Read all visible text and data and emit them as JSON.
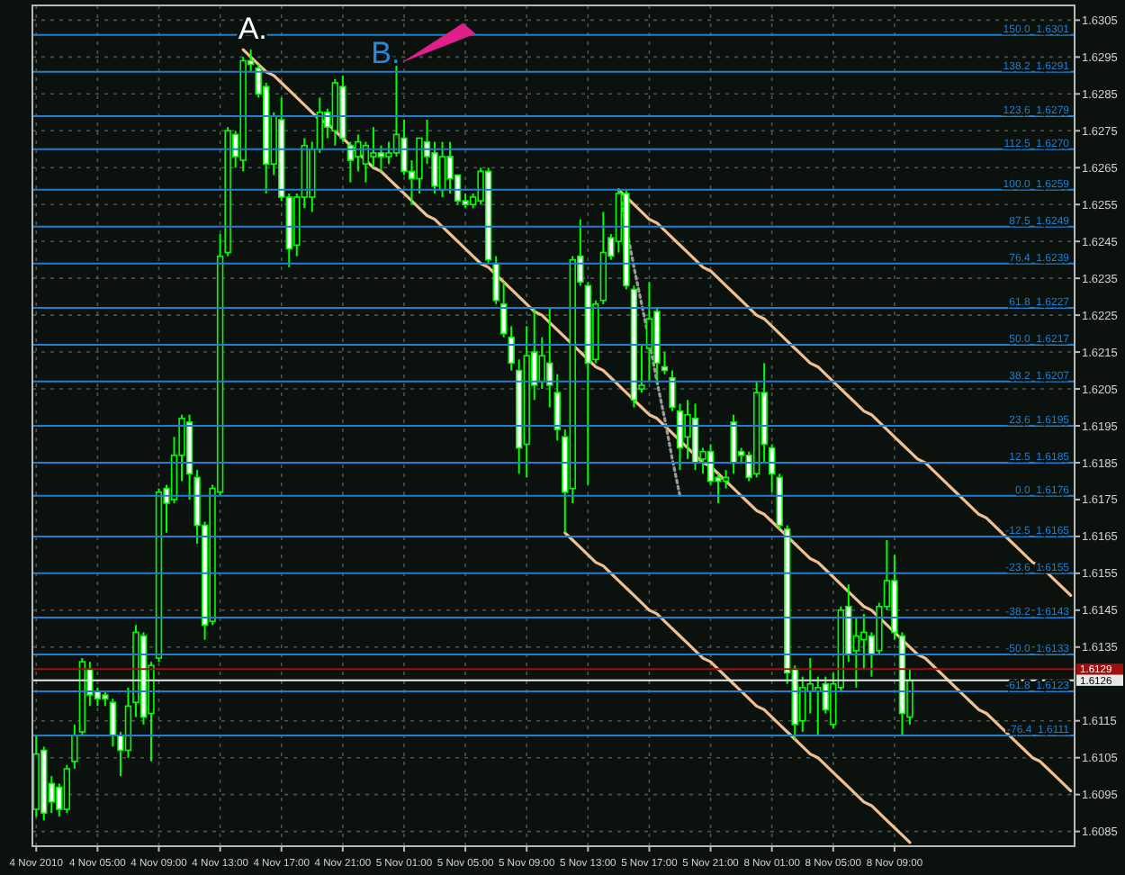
{
  "chart_data": {
    "type": "candlestick",
    "color": "#00ff00",
    "categories": [
      "4 Nov 2010",
      null,
      null,
      null,
      null,
      null,
      null,
      null,
      "4 Nov 05:00",
      null,
      null,
      null,
      null,
      null,
      null,
      null,
      "4 Nov 09:00",
      null,
      null,
      null,
      null,
      null,
      null,
      null,
      "4 Nov 13:00",
      null,
      null,
      null,
      null,
      null,
      null,
      null,
      "4 Nov 17:00",
      null,
      null,
      null,
      null,
      null,
      null,
      null,
      "4 Nov 21:00",
      null,
      null,
      null,
      null,
      null,
      null,
      null,
      "5 Nov 01:00",
      null,
      null,
      null,
      null,
      null,
      null,
      null,
      "5 Nov 05:00",
      null,
      null,
      null,
      null,
      null,
      null,
      null,
      "5 Nov 09:00",
      null,
      null,
      null,
      null,
      null,
      null,
      null,
      "5 Nov 13:00",
      null,
      null,
      null,
      null,
      null,
      null,
      null,
      "5 Nov 17:00",
      null,
      null,
      null,
      null,
      null,
      null,
      null,
      "5 Nov 21:00",
      null,
      null,
      null,
      null,
      null,
      null,
      null,
      "8 Nov 01:00",
      null,
      null,
      null,
      null,
      null,
      null,
      null,
      "8 Nov 05:00",
      null,
      null,
      null,
      null,
      null,
      null,
      null,
      "8 Nov 09:00",
      null,
      null,
      null,
      null,
      null,
      null,
      null,
      null,
      null,
      null,
      null,
      null,
      null,
      null,
      null,
      null,
      null,
      null,
      null,
      null,
      null,
      null,
      null
    ],
    "ohlc": [
      [
        1.6091,
        1.6111,
        1.6089,
        1.6106
      ],
      [
        1.6107,
        1.6108,
        1.6088,
        1.609
      ],
      [
        1.6098,
        1.61,
        1.609,
        1.6093
      ],
      [
        1.6097,
        1.6098,
        1.6089,
        1.6091
      ],
      [
        1.6091,
        1.6103,
        1.609,
        1.6102
      ],
      [
        1.6104,
        1.6114,
        1.6102,
        1.6111
      ],
      [
        1.6112,
        1.6132,
        1.6111,
        1.6131
      ],
      [
        1.6129,
        1.6131,
        1.6119,
        1.6122
      ],
      [
        1.6123,
        1.6124,
        1.6119,
        1.6121
      ],
      [
        1.6122,
        1.6123,
        1.6119,
        1.6121
      ],
      [
        1.612,
        1.6121,
        1.6108,
        1.6111
      ],
      [
        1.6111,
        1.6112,
        1.61,
        1.6107
      ],
      [
        1.6107,
        1.6124,
        1.6105,
        1.6119
      ],
      [
        1.612,
        1.6141,
        1.6116,
        1.6139
      ],
      [
        1.6138,
        1.6139,
        1.6114,
        1.6116
      ],
      [
        1.6117,
        1.6131,
        1.6104,
        1.613
      ],
      [
        1.6132,
        1.6178,
        1.6131,
        1.6177
      ],
      [
        1.6178,
        1.6179,
        1.6166,
        1.6174
      ],
      [
        1.6175,
        1.6192,
        1.6174,
        1.6187
      ],
      [
        1.6187,
        1.6198,
        1.618,
        1.6197
      ],
      [
        1.6196,
        1.6198,
        1.6175,
        1.6182
      ],
      [
        1.6181,
        1.6183,
        1.6163,
        1.6168
      ],
      [
        1.6168,
        1.6169,
        1.6137,
        1.6141
      ],
      [
        1.6142,
        1.6179,
        1.6141,
        1.6178
      ],
      [
        1.6177,
        1.6247,
        1.6176,
        1.6241
      ],
      [
        1.6242,
        1.6276,
        1.6241,
        1.6275
      ],
      [
        1.6274,
        1.6275,
        1.6265,
        1.6268
      ],
      [
        1.6267,
        1.6295,
        1.6264,
        1.6294
      ],
      [
        1.6294,
        1.6297,
        1.6291,
        1.6293
      ],
      [
        1.6292,
        1.6293,
        1.6284,
        1.6285
      ],
      [
        1.6287,
        1.6288,
        1.6258,
        1.6266
      ],
      [
        1.6266,
        1.628,
        1.6263,
        1.6279
      ],
      [
        1.6278,
        1.6284,
        1.6256,
        1.6257
      ],
      [
        1.6257,
        1.6258,
        1.6238,
        1.6243
      ],
      [
        1.6244,
        1.6258,
        1.6241,
        1.6257
      ],
      [
        1.6257,
        1.6273,
        1.6254,
        1.6271
      ],
      [
        1.6257,
        1.6272,
        1.6253,
        1.627
      ],
      [
        1.627,
        1.6284,
        1.6269,
        1.628
      ],
      [
        1.628,
        1.6281,
        1.6273,
        1.6276
      ],
      [
        1.6275,
        1.6289,
        1.6271,
        1.6288
      ],
      [
        1.6287,
        1.629,
        1.6272,
        1.6273
      ],
      [
        1.6271,
        1.6272,
        1.6261,
        1.6267
      ],
      [
        1.6268,
        1.6274,
        1.6264,
        1.6272
      ],
      [
        1.6266,
        1.6272,
        1.6261,
        1.6271
      ],
      [
        1.6268,
        1.6276,
        1.6265,
        1.6269
      ],
      [
        1.6269,
        1.6271,
        1.6264,
        1.6268
      ],
      [
        1.6268,
        1.6272,
        1.6266,
        1.6269
      ],
      [
        1.6269,
        1.6293,
        1.6268,
        1.6274
      ],
      [
        1.6273,
        1.6278,
        1.6263,
        1.6264
      ],
      [
        1.6264,
        1.6267,
        1.6255,
        1.6262
      ],
      [
        1.6262,
        1.6273,
        1.6258,
        1.6273
      ],
      [
        1.6272,
        1.6278,
        1.6266,
        1.6268
      ],
      [
        1.6269,
        1.6272,
        1.6258,
        1.626
      ],
      [
        1.6259,
        1.6272,
        1.6257,
        1.6268
      ],
      [
        1.6268,
        1.6272,
        1.6258,
        1.6262
      ],
      [
        1.6263,
        1.6263,
        1.6255,
        1.6256
      ],
      [
        1.6256,
        1.6258,
        1.6254,
        1.6255
      ],
      [
        1.6255,
        1.6258,
        1.6254,
        1.6257
      ],
      [
        1.6256,
        1.6265,
        1.6255,
        1.6264
      ],
      [
        1.6264,
        1.6265,
        1.6239,
        1.624
      ],
      [
        1.6239,
        1.6241,
        1.6228,
        1.6229
      ],
      [
        1.6228,
        1.6234,
        1.6219,
        1.622
      ],
      [
        1.6219,
        1.6222,
        1.621,
        1.6212
      ],
      [
        1.621,
        1.6213,
        1.6182,
        1.6189
      ],
      [
        1.619,
        1.6222,
        1.6181,
        1.6214
      ],
      [
        1.6215,
        1.6227,
        1.6202,
        1.6206
      ],
      [
        1.6207,
        1.6219,
        1.6205,
        1.6214
      ],
      [
        1.6212,
        1.6227,
        1.62,
        1.6206
      ],
      [
        1.6204,
        1.6209,
        1.6191,
        1.6194
      ],
      [
        1.6192,
        1.6194,
        1.6166,
        1.6177
      ],
      [
        1.6178,
        1.6241,
        1.6174,
        1.624
      ],
      [
        1.6241,
        1.6251,
        1.6233,
        1.6234
      ],
      [
        1.6233,
        1.6234,
        1.6179,
        1.6212
      ],
      [
        1.6213,
        1.6229,
        1.6212,
        1.6228
      ],
      [
        1.6229,
        1.6253,
        1.6228,
        1.6242
      ],
      [
        1.6246,
        1.6247,
        1.624,
        1.6241
      ],
      [
        1.6245,
        1.6259,
        1.6242,
        1.6258
      ],
      [
        1.6258,
        1.6259,
        1.6232,
        1.6233
      ],
      [
        1.6232,
        1.6233,
        1.62,
        1.6202
      ],
      [
        1.6205,
        1.6217,
        1.6204,
        1.6206
      ],
      [
        1.6216,
        1.6234,
        1.6207,
        1.6224
      ],
      [
        1.6226,
        1.6227,
        1.6207,
        1.6212
      ],
      [
        1.6211,
        1.6215,
        1.6209,
        1.621
      ],
      [
        1.6208,
        1.621,
        1.6199,
        1.62
      ],
      [
        1.6199,
        1.6201,
        1.6183,
        1.6189
      ],
      [
        1.6192,
        1.6202,
        1.6186,
        1.6198
      ],
      [
        1.6197,
        1.6201,
        1.6183,
        1.6185
      ],
      [
        1.6186,
        1.6189,
        1.6182,
        1.6188
      ],
      [
        1.6188,
        1.619,
        1.6179,
        1.618
      ],
      [
        1.6181,
        1.6182,
        1.6174,
        1.618
      ],
      [
        1.618,
        1.6183,
        1.6178,
        1.6181
      ],
      [
        1.6196,
        1.6198,
        1.6182,
        1.6185
      ],
      [
        1.6188,
        1.6189,
        1.6185,
        1.6187
      ],
      [
        1.6187,
        1.6188,
        1.618,
        1.6181
      ],
      [
        1.6182,
        1.6207,
        1.6181,
        1.6204
      ],
      [
        1.6204,
        1.6212,
        1.6185,
        1.619
      ],
      [
        1.6189,
        1.619,
        1.6177,
        1.6182
      ],
      [
        1.6181,
        1.6182,
        1.6167,
        1.6168
      ],
      [
        1.6167,
        1.6168,
        1.6125,
        1.6128
      ],
      [
        1.6129,
        1.613,
        1.611,
        1.6114
      ],
      [
        1.6115,
        1.6127,
        1.6112,
        1.6124
      ],
      [
        1.6123,
        1.6132,
        1.6117,
        1.6125
      ],
      [
        1.6123,
        1.6127,
        1.6111,
        1.6124
      ],
      [
        1.6125,
        1.6127,
        1.6117,
        1.6118
      ],
      [
        1.6114,
        1.6128,
        1.6113,
        1.6125
      ],
      [
        1.6124,
        1.6146,
        1.6123,
        1.6145
      ],
      [
        1.6146,
        1.6152,
        1.6131,
        1.6133
      ],
      [
        1.6134,
        1.6143,
        1.6124,
        1.6138
      ],
      [
        1.6137,
        1.6144,
        1.6129,
        1.6139
      ],
      [
        1.6138,
        1.6139,
        1.6127,
        1.6133
      ],
      [
        1.6134,
        1.6147,
        1.6133,
        1.6146
      ],
      [
        1.6146,
        1.6164,
        1.6145,
        1.6153
      ],
      [
        1.6153,
        1.616,
        1.6137,
        1.6139
      ],
      [
        1.6138,
        1.6139,
        1.6111,
        1.6117
      ],
      [
        1.6116,
        1.6129,
        1.6114,
        1.6126
      ],
      null,
      null,
      null,
      null,
      null,
      null,
      null,
      null,
      null,
      null,
      null,
      null,
      null,
      null,
      null,
      null,
      null,
      null,
      null,
      null,
      null
    ],
    "series": [
      {
        "type": "line",
        "color": "#f2c08e",
        "values": [
          null,
          null,
          null,
          null,
          null,
          null,
          null,
          null,
          null,
          null,
          null,
          null,
          null,
          null,
          null,
          null,
          null,
          null,
          null,
          null,
          null,
          null,
          null,
          null,
          null,
          null,
          null,
          1.6297,
          1.6295,
          1.6293,
          1.6291,
          1.629,
          1.6288,
          1.6286,
          1.6284,
          1.6282,
          1.628,
          1.6278,
          1.6277,
          1.6275,
          1.6273,
          1.6271,
          1.6269,
          1.6267,
          1.6265,
          1.6264,
          1.6262,
          1.626,
          1.6258,
          1.6256,
          1.6254,
          1.6252,
          1.6251,
          1.6249,
          1.6247,
          1.6245,
          1.6243,
          1.6241,
          1.6239,
          1.6238,
          1.6236,
          1.6234,
          1.6232,
          1.623,
          1.6228,
          1.6226,
          1.6225,
          1.6223,
          1.6221,
          1.6219,
          1.6217,
          1.6215,
          1.6213,
          1.6211,
          1.621,
          1.6208,
          1.6206,
          1.6204,
          1.6202,
          1.62,
          1.6198,
          1.6197,
          1.6195,
          1.6193,
          1.6191,
          1.6189,
          1.6187,
          1.6185,
          1.6184,
          1.6182,
          1.618,
          1.6178,
          1.6176,
          1.6174,
          1.6172,
          1.6171,
          1.6169,
          1.6167,
          1.6165,
          1.6163,
          1.6161,
          1.6159,
          1.6158,
          1.6156,
          1.6154,
          1.6152,
          1.615,
          1.6148,
          1.6146,
          1.6145,
          1.6143,
          1.6141,
          1.6139,
          1.6137,
          1.6135,
          1.6133,
          1.6132,
          1.613,
          1.6128,
          1.6126,
          1.6124,
          1.6122,
          1.612,
          1.6118,
          1.6117,
          1.6115,
          1.6113,
          1.6111,
          1.6109,
          1.6107,
          1.6105,
          1.6104,
          1.6102,
          1.61,
          1.6098,
          1.6096
        ]
      },
      {
        "type": "line",
        "color": "#f2c08e",
        "values": [
          null,
          null,
          null,
          null,
          null,
          null,
          null,
          null,
          null,
          null,
          null,
          null,
          null,
          null,
          null,
          null,
          null,
          null,
          null,
          null,
          null,
          null,
          null,
          null,
          null,
          null,
          null,
          null,
          null,
          null,
          null,
          null,
          null,
          null,
          null,
          null,
          null,
          null,
          null,
          null,
          null,
          null,
          null,
          null,
          null,
          null,
          null,
          null,
          null,
          null,
          null,
          null,
          null,
          null,
          null,
          null,
          null,
          null,
          null,
          null,
          null,
          null,
          null,
          null,
          null,
          null,
          null,
          null,
          null,
          null,
          null,
          null,
          null,
          null,
          null,
          null,
          1.6259,
          1.6257,
          1.6255,
          1.6253,
          1.6251,
          1.625,
          1.6248,
          1.6246,
          1.6244,
          1.6242,
          1.624,
          1.6238,
          1.6237,
          1.6235,
          1.6233,
          1.6231,
          1.6229,
          1.6227,
          1.6225,
          1.6224,
          1.6222,
          1.622,
          1.6218,
          1.6216,
          1.6214,
          1.6212,
          1.6211,
          1.6209,
          1.6207,
          1.6205,
          1.6203,
          1.6201,
          1.6199,
          1.6198,
          1.6196,
          1.6194,
          1.6192,
          1.619,
          1.6188,
          1.6186,
          1.6185,
          1.6183,
          1.6181,
          1.6179,
          1.6177,
          1.6175,
          1.6173,
          1.6171,
          1.617,
          1.6168,
          1.6166,
          1.6164,
          1.6162,
          1.616,
          1.6158,
          1.6157,
          1.6155,
          1.6153,
          1.6151,
          1.6149
        ]
      },
      {
        "type": "line",
        "color": "#f2c08e",
        "values": [
          null,
          null,
          null,
          null,
          null,
          null,
          null,
          null,
          null,
          null,
          null,
          null,
          null,
          null,
          null,
          null,
          null,
          null,
          null,
          null,
          null,
          null,
          null,
          null,
          null,
          null,
          null,
          null,
          null,
          null,
          null,
          null,
          null,
          null,
          null,
          null,
          null,
          null,
          null,
          null,
          null,
          null,
          null,
          null,
          null,
          null,
          null,
          null,
          null,
          null,
          null,
          null,
          null,
          null,
          null,
          null,
          null,
          null,
          null,
          null,
          null,
          null,
          null,
          null,
          null,
          null,
          null,
          null,
          null,
          1.6166,
          1.6164,
          1.6162,
          1.616,
          1.6158,
          1.6157,
          1.6155,
          1.6153,
          1.6151,
          1.6149,
          1.6147,
          1.6145,
          1.6144,
          1.6142,
          1.614,
          1.6138,
          1.6136,
          1.6134,
          1.6132,
          1.6131,
          1.6129,
          1.6127,
          1.6125,
          1.6123,
          1.6121,
          1.6119,
          1.6118,
          1.6116,
          1.6114,
          1.6112,
          1.611,
          1.6108,
          1.6106,
          1.6105,
          1.6103,
          1.6101,
          1.6099,
          1.6097,
          1.6095,
          1.6093,
          1.6092,
          1.609,
          1.6088,
          1.6086,
          1.6084,
          1.6082,
          null,
          null,
          null,
          null,
          null,
          null,
          null,
          null,
          null,
          null,
          null,
          null,
          null,
          null,
          null,
          null,
          null,
          null,
          null,
          null,
          null
        ]
      },
      {
        "type": "line",
        "color": "#9a9a9a",
        "line_style": "dotted",
        "values": [
          null,
          null,
          null,
          null,
          null,
          null,
          null,
          null,
          null,
          null,
          null,
          null,
          null,
          null,
          null,
          null,
          null,
          null,
          null,
          null,
          null,
          null,
          null,
          null,
          null,
          null,
          null,
          null,
          null,
          null,
          null,
          null,
          null,
          null,
          null,
          null,
          null,
          null,
          null,
          null,
          null,
          null,
          null,
          null,
          null,
          null,
          null,
          null,
          null,
          null,
          null,
          null,
          null,
          null,
          null,
          null,
          null,
          null,
          null,
          null,
          null,
          null,
          null,
          null,
          null,
          null,
          null,
          null,
          null,
          null,
          null,
          null,
          null,
          null,
          null,
          null,
          1.6259,
          1.6249,
          1.6238,
          1.6228,
          1.6218,
          1.6207,
          1.6197,
          1.6186,
          1.6176,
          null,
          null,
          null,
          null,
          null,
          null,
          null,
          null,
          null,
          null,
          null,
          null,
          null,
          null,
          null,
          null,
          null,
          null,
          null,
          null,
          null,
          null,
          null,
          null,
          null,
          null,
          null,
          null,
          null,
          null,
          null,
          null,
          null,
          null,
          null,
          null,
          null,
          null,
          null,
          null,
          null,
          null,
          null,
          null,
          null,
          null,
          null,
          null,
          null,
          null,
          null
        ]
      }
    ],
    "ylim": [
      1.6081,
      1.6309
    ],
    "yticks": [
      1.6305,
      1.6295,
      1.6285,
      1.6275,
      1.6265,
      1.6255,
      1.6245,
      1.6235,
      1.6225,
      1.6215,
      1.6205,
      1.6195,
      1.6185,
      1.6175,
      1.6165,
      1.6155,
      1.6145,
      1.6135,
      1.6115,
      1.6105,
      1.6095,
      1.6085
    ],
    "grid": true,
    "ref_lines": [
      {
        "axis": "y",
        "value": 1.6301,
        "label": "150.0  1.6301",
        "color": "#1e7fd0"
      },
      {
        "axis": "y",
        "value": 1.6291,
        "label": "138.2  1.6291",
        "color": "#1e7fd0"
      },
      {
        "axis": "y",
        "value": 1.6279,
        "label": "123.6  1.6279",
        "color": "#1e7fd0"
      },
      {
        "axis": "y",
        "value": 1.627,
        "label": "112.5  1.6270",
        "color": "#1e7fd0"
      },
      {
        "axis": "y",
        "value": 1.6259,
        "label": "100.0  1.6259",
        "color": "#1e7fd0"
      },
      {
        "axis": "y",
        "value": 1.6249,
        "label": "87.5  1.6249",
        "color": "#1e7fd0"
      },
      {
        "axis": "y",
        "value": 1.6239,
        "label": "76.4  1.6239",
        "color": "#1e7fd0"
      },
      {
        "axis": "y",
        "value": 1.6227,
        "label": "61.8  1.6227",
        "color": "#1e7fd0"
      },
      {
        "axis": "y",
        "value": 1.6217,
        "label": "50.0  1.6217",
        "color": "#1e7fd0"
      },
      {
        "axis": "y",
        "value": 1.6207,
        "label": "38.2  1.6207",
        "color": "#1e7fd0"
      },
      {
        "axis": "y",
        "value": 1.6195,
        "label": "23.6  1.6195",
        "color": "#1e7fd0"
      },
      {
        "axis": "y",
        "value": 1.6185,
        "label": "12.5  1.6185",
        "color": "#1e7fd0"
      },
      {
        "axis": "y",
        "value": 1.6176,
        "label": "0.0  1.6176",
        "color": "#1e7fd0"
      },
      {
        "axis": "y",
        "value": 1.6165,
        "label": "-12.5  1.6165",
        "color": "#1e7fd0"
      },
      {
        "axis": "y",
        "value": 1.6155,
        "label": "-23.6  1.6155",
        "color": "#1e7fd0"
      },
      {
        "axis": "y",
        "value": 1.6143,
        "label": "-38.2  1.6143",
        "color": "#1e7fd0"
      },
      {
        "axis": "y",
        "value": 1.6133,
        "label": "-50.0  1.6133",
        "color": "#1e7fd0"
      },
      {
        "axis": "y",
        "value": 1.6123,
        "label": "-61.8  1.6123",
        "color": "#1e7fd0"
      },
      {
        "axis": "y",
        "value": 1.6111,
        "label": "-76.4  1.6111",
        "color": "#1e7fd0"
      },
      {
        "axis": "y",
        "value": 1.6129,
        "label": "1.6129",
        "color": "#a01010",
        "line_style": "solid"
      },
      {
        "axis": "y",
        "value": 1.6126,
        "label": "1.6126",
        "color": "#e8e8e8",
        "line_style": "solid"
      }
    ],
    "annotations": [
      "A.",
      "B."
    ]
  }
}
